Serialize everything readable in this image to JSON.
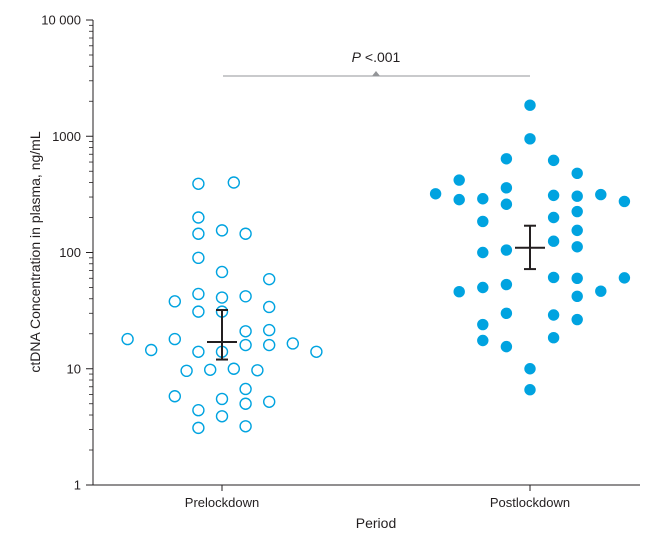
{
  "chart_data": {
    "type": "scatter",
    "xlabel": "Period",
    "ylabel": "ctDNA Concentration in plasma, ng/mL",
    "yscale": "log",
    "ylim": [
      1,
      10000
    ],
    "ytick_labels": [
      "1",
      "10",
      "100",
      "1000",
      "10 000"
    ],
    "categories": [
      "Prelockdown",
      "Postlockdown"
    ],
    "annotation": {
      "p_symbol": "P",
      "p_rest": " <.001"
    },
    "colors": {
      "pre": "#00a3e0",
      "post": "#00a3e0",
      "axis": "#231f20",
      "bracket": "#939598"
    },
    "series": [
      {
        "category": "Prelockdown",
        "marker": "open-circle",
        "points": [
          {
            "offset": -0.4,
            "y": 18
          },
          {
            "offset": -0.3,
            "y": 14.5
          },
          {
            "offset": -0.2,
            "y": 38
          },
          {
            "offset": -0.2,
            "y": 18
          },
          {
            "offset": -0.2,
            "y": 5.8
          },
          {
            "offset": -0.15,
            "y": 9.6
          },
          {
            "offset": -0.1,
            "y": 390
          },
          {
            "offset": -0.1,
            "y": 200
          },
          {
            "offset": -0.1,
            "y": 145
          },
          {
            "offset": -0.1,
            "y": 90
          },
          {
            "offset": -0.1,
            "y": 44
          },
          {
            "offset": -0.1,
            "y": 31
          },
          {
            "offset": -0.1,
            "y": 14
          },
          {
            "offset": -0.1,
            "y": 4.4
          },
          {
            "offset": -0.1,
            "y": 3.1
          },
          {
            "offset": -0.05,
            "y": 9.8
          },
          {
            "offset": 0.0,
            "y": 155
          },
          {
            "offset": 0.0,
            "y": 68
          },
          {
            "offset": 0.0,
            "y": 41
          },
          {
            "offset": 0.0,
            "y": 31
          },
          {
            "offset": 0.0,
            "y": 14
          },
          {
            "offset": 0.0,
            "y": 5.5
          },
          {
            "offset": 0.0,
            "y": 3.9
          },
          {
            "offset": 0.05,
            "y": 400
          },
          {
            "offset": 0.05,
            "y": 10
          },
          {
            "offset": 0.1,
            "y": 145
          },
          {
            "offset": 0.1,
            "y": 42
          },
          {
            "offset": 0.1,
            "y": 21
          },
          {
            "offset": 0.1,
            "y": 16
          },
          {
            "offset": 0.1,
            "y": 6.7
          },
          {
            "offset": 0.1,
            "y": 5
          },
          {
            "offset": 0.1,
            "y": 3.2
          },
          {
            "offset": 0.15,
            "y": 9.7
          },
          {
            "offset": 0.2,
            "y": 59
          },
          {
            "offset": 0.2,
            "y": 34
          },
          {
            "offset": 0.2,
            "y": 21.5
          },
          {
            "offset": 0.2,
            "y": 16
          },
          {
            "offset": 0.2,
            "y": 5.2
          },
          {
            "offset": 0.3,
            "y": 16.5
          },
          {
            "offset": 0.4,
            "y": 14
          }
        ],
        "mean": 17,
        "ci": [
          12,
          32
        ]
      },
      {
        "category": "Postlockdown",
        "marker": "filled-circle",
        "points": [
          {
            "offset": -0.4,
            "y": 320
          },
          {
            "offset": -0.3,
            "y": 420
          },
          {
            "offset": -0.3,
            "y": 285
          },
          {
            "offset": -0.3,
            "y": 46
          },
          {
            "offset": -0.2,
            "y": 290
          },
          {
            "offset": -0.2,
            "y": 185
          },
          {
            "offset": -0.2,
            "y": 100
          },
          {
            "offset": -0.2,
            "y": 50
          },
          {
            "offset": -0.2,
            "y": 24
          },
          {
            "offset": -0.2,
            "y": 17.5
          },
          {
            "offset": -0.1,
            "y": 640
          },
          {
            "offset": -0.1,
            "y": 360
          },
          {
            "offset": -0.1,
            "y": 260
          },
          {
            "offset": -0.1,
            "y": 105
          },
          {
            "offset": -0.1,
            "y": 53
          },
          {
            "offset": -0.1,
            "y": 30
          },
          {
            "offset": -0.1,
            "y": 15.5
          },
          {
            "offset": 0.0,
            "y": 1850
          },
          {
            "offset": 0.0,
            "y": 950
          },
          {
            "offset": 0.0,
            "y": 10
          },
          {
            "offset": 0.0,
            "y": 6.6
          },
          {
            "offset": 0.1,
            "y": 620
          },
          {
            "offset": 0.1,
            "y": 310
          },
          {
            "offset": 0.1,
            "y": 200
          },
          {
            "offset": 0.1,
            "y": 125
          },
          {
            "offset": 0.1,
            "y": 61
          },
          {
            "offset": 0.1,
            "y": 29
          },
          {
            "offset": 0.1,
            "y": 18.5
          },
          {
            "offset": 0.2,
            "y": 480
          },
          {
            "offset": 0.2,
            "y": 305
          },
          {
            "offset": 0.2,
            "y": 225
          },
          {
            "offset": 0.2,
            "y": 155
          },
          {
            "offset": 0.2,
            "y": 112
          },
          {
            "offset": 0.2,
            "y": 60
          },
          {
            "offset": 0.2,
            "y": 42
          },
          {
            "offset": 0.2,
            "y": 26.5
          },
          {
            "offset": 0.3,
            "y": 315
          },
          {
            "offset": 0.3,
            "y": 46.5
          },
          {
            "offset": 0.4,
            "y": 275
          },
          {
            "offset": 0.4,
            "y": 60.5
          }
        ],
        "mean": 110,
        "ci": [
          72,
          170
        ]
      }
    ]
  }
}
